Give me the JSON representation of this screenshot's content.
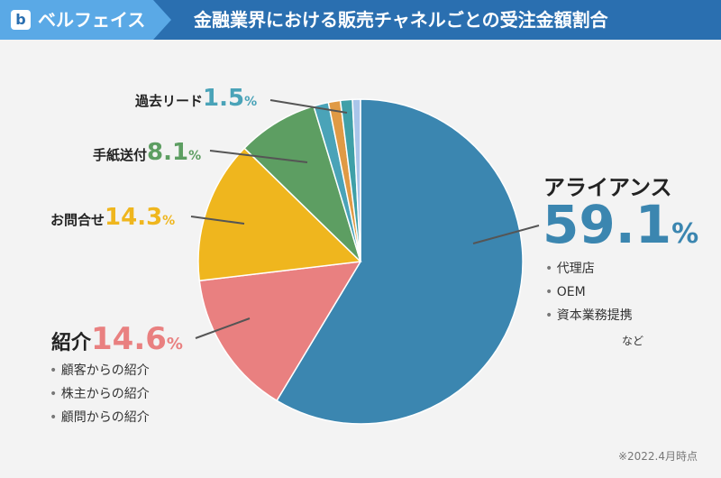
{
  "header": {
    "logo_letter": "b",
    "brand": "ベルフェイス",
    "title": "金融業界における販売チャネルごとの受注金額割合"
  },
  "chart_data": {
    "type": "pie",
    "title": "金融業界における販売チャネルごとの受注金額割合",
    "unit": "%",
    "slices": [
      {
        "label": "アライアンス",
        "value": 59.1,
        "color": "#3b86b0",
        "details": [
          "代理店",
          "OEM",
          "資本業務提携"
        ],
        "suffix": "など"
      },
      {
        "label": "紹介",
        "value": 14.6,
        "color": "#e98080",
        "details": [
          "顧客からの紹介",
          "株主からの紹介",
          "顧問からの紹介"
        ]
      },
      {
        "label": "お問合せ",
        "value": 14.3,
        "color": "#efb61e"
      },
      {
        "label": "手紙送付",
        "value": 8.1,
        "color": "#5d9e62"
      },
      {
        "label": "過去リード",
        "value": 1.5,
        "color": "#4aa3b8"
      },
      {
        "label": "",
        "value": 1.2,
        "color": "#e09a45"
      },
      {
        "label": "",
        "value": 1.2,
        "color": "#3fa0a8"
      },
      {
        "label": "",
        "value": 0.8,
        "color": "#a9c5ea"
      }
    ]
  },
  "labels": {
    "alliance": {
      "name": "アライアンス",
      "value": "59.1",
      "pct": "%",
      "color": "#3b86b0",
      "details": [
        "代理店",
        "OEM",
        "資本業務提携"
      ],
      "suffix": "など"
    },
    "referral": {
      "name": "紹介",
      "value": "14.6",
      "pct": "%",
      "color": "#e98080",
      "details": [
        "顧客からの紹介",
        "株主からの紹介",
        "顧問からの紹介"
      ]
    },
    "inquiry": {
      "name": "お問合せ",
      "value": "14.3",
      "pct": "%",
      "color": "#efb61e"
    },
    "letter": {
      "name": "手紙送付",
      "value": "8.1",
      "pct": "%",
      "color": "#5d9e62"
    },
    "past_lead": {
      "name": "過去リード",
      "value": "1.5",
      "pct": "%",
      "color": "#4aa3b8"
    }
  },
  "note": "※2022.4月時点"
}
